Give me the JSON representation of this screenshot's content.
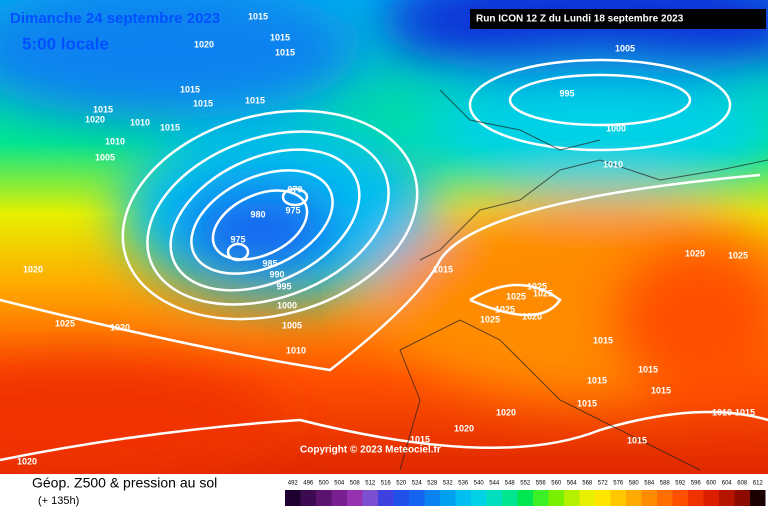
{
  "header": {
    "date": "Dimanche 24 septembre 2023",
    "time": "5:00 locale",
    "run": "Run ICON 12 Z du Lundi 18 septembre 2023"
  },
  "isobar_labels": [
    "1015",
    "1020",
    "1015",
    "1015",
    "1015",
    "1015",
    "1015",
    "1015",
    "1020",
    "1010",
    "1015",
    "1010",
    "1005",
    "970",
    "975",
    "980",
    "975",
    "985",
    "990",
    "995",
    "1000",
    "1005",
    "1010",
    "1020",
    "1025",
    "1020",
    "1015",
    "1025",
    "1025",
    "1025",
    "1025",
    "1025",
    "1020",
    "1015",
    "1015",
    "1015",
    "1015",
    "1020",
    "1020",
    "1015",
    "1015",
    "1015",
    "1010",
    "1015",
    "1020",
    "1025",
    "1005",
    "995",
    "1000",
    "1010",
    "1020"
  ],
  "copyright": "Copyright © 2023 Meteociel.fr",
  "footer": {
    "title": "Géop. Z500 & pression au sol",
    "subtitle": "(+ 135h)"
  },
  "legend": [
    {
      "value": 492,
      "color": "#1e0030"
    },
    {
      "value": 496,
      "color": "#3c0a50"
    },
    {
      "value": 500,
      "color": "#5a1470"
    },
    {
      "value": 504,
      "color": "#781e90"
    },
    {
      "value": 508,
      "color": "#9632b0"
    },
    {
      "value": 512,
      "color": "#7a50d0"
    },
    {
      "value": 516,
      "color": "#4040e0"
    },
    {
      "value": 520,
      "color": "#2050e8"
    },
    {
      "value": 524,
      "color": "#1464f0"
    },
    {
      "value": 528,
      "color": "#0a82f0"
    },
    {
      "value": 532,
      "color": "#00a0f0"
    },
    {
      "value": 536,
      "color": "#00bef0"
    },
    {
      "value": 540,
      "color": "#00d2e6"
    },
    {
      "value": 544,
      "color": "#00e0c0"
    },
    {
      "value": 548,
      "color": "#00e690"
    },
    {
      "value": 552,
      "color": "#00e650"
    },
    {
      "value": 556,
      "color": "#3cf028"
    },
    {
      "value": 560,
      "color": "#78f000"
    },
    {
      "value": 564,
      "color": "#b4f000"
    },
    {
      "value": 568,
      "color": "#e6f000"
    },
    {
      "value": 572,
      "color": "#ffe600"
    },
    {
      "value": 576,
      "color": "#ffc800"
    },
    {
      "value": 580,
      "color": "#ffaa00"
    },
    {
      "value": 584,
      "color": "#ff8c00"
    },
    {
      "value": 588,
      "color": "#ff6e00"
    },
    {
      "value": 592,
      "color": "#ff5000"
    },
    {
      "value": 596,
      "color": "#f03200"
    },
    {
      "value": 600,
      "color": "#dc1e00"
    },
    {
      "value": 604,
      "color": "#b41400"
    },
    {
      "value": 608,
      "color": "#8c0a00"
    },
    {
      "value": 612,
      "color": "#1a0000"
    }
  ]
}
